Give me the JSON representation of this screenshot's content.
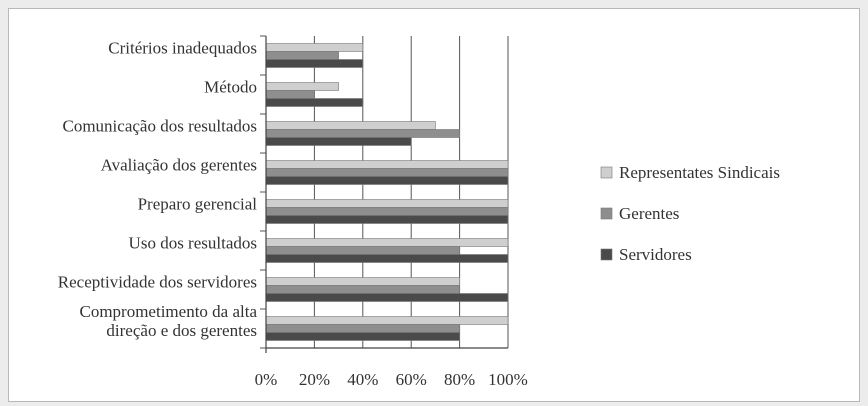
{
  "chart_data": {
    "type": "bar",
    "orientation": "horizontal",
    "title": "",
    "xlabel": "",
    "ylabel": "",
    "xlim": [
      0,
      100
    ],
    "x_ticks": [
      "0%",
      "20%",
      "40%",
      "60%",
      "80%",
      "100%"
    ],
    "grid": true,
    "legend_position": "right",
    "categories": [
      [
        "Critérios inadequados"
      ],
      [
        "Método"
      ],
      [
        "Comunicação dos resultados"
      ],
      [
        "Avaliação dos gerentes"
      ],
      [
        "Preparo gerencial"
      ],
      [
        "Uso dos resultados"
      ],
      [
        "Receptividade dos servidores"
      ],
      [
        "Comprometimento da alta",
        "direção e dos gerentes"
      ]
    ],
    "series": [
      {
        "name": "Representates Sindicais",
        "color": "#cfcfcf",
        "values": [
          40,
          30,
          70,
          100,
          100,
          100,
          80,
          100
        ]
      },
      {
        "name": "Gerentes",
        "color": "#8e8e8e",
        "values": [
          30,
          20,
          80,
          100,
          100,
          80,
          80,
          80
        ]
      },
      {
        "name": "Servidores",
        "color": "#4a4a4a",
        "values": [
          40,
          40,
          60,
          100,
          100,
          100,
          100,
          80
        ]
      }
    ]
  }
}
